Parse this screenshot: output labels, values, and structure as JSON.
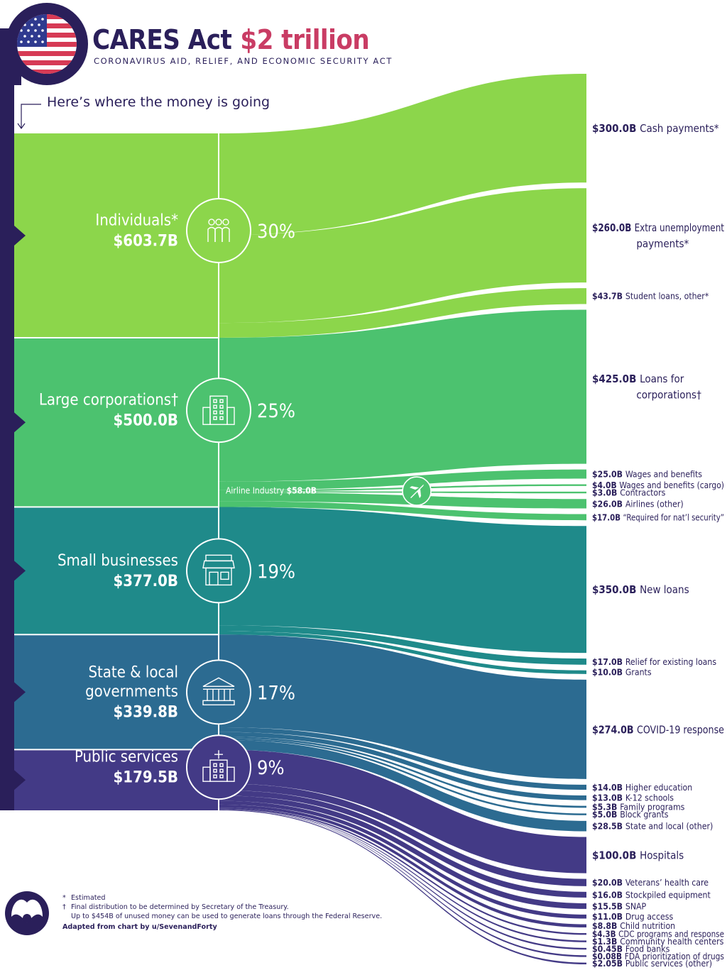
{
  "header": {
    "title": "CARES Act",
    "title_amount": "$2 trillion",
    "subtitle": "CORONAVIRUS AID, RELIEF, AND ECONOMIC SECURITY ACT",
    "tagline": "Here’s where the money is going"
  },
  "colors": {
    "navy": "#2a1f5a",
    "accent": "#c93c64",
    "individuals": "#8cd64b",
    "large_corporations": "#4cc26f",
    "small_businesses": "#1f8a8a",
    "state_local": "#2c6b91",
    "public_services": "#433a86"
  },
  "chart_data": {
    "type": "sankey",
    "title": "CARES Act $2 trillion",
    "units": "USD billions",
    "categories": [
      {
        "name": "Individuals*",
        "value_label": "$603.7B",
        "value": 603.7,
        "percent": "30%",
        "icon": "people-icon",
        "items": [
          {
            "value": 300.0,
            "value_label": "$300.0B",
            "label": "Cash payments*"
          },
          {
            "value": 260.0,
            "value_label": "$260.0B",
            "label": "Extra unemployment payments*",
            "lines": [
              "Extra unemployment",
              "payments*"
            ]
          },
          {
            "value": 43.7,
            "value_label": "$43.7B",
            "label": "Student loans, other*"
          }
        ]
      },
      {
        "name": "Large corporations†",
        "value_label": "$500.0B",
        "value": 500.0,
        "percent": "25%",
        "icon": "building-icon",
        "sub_group": {
          "label": "Airline Industry",
          "value_label": "$58.0B",
          "value": 58.0,
          "icon": "airplane-icon"
        },
        "items": [
          {
            "value": 425.0,
            "value_label": "$425.0B",
            "label": "Loans for corporations†",
            "lines": [
              "Loans for",
              "corporations†"
            ]
          },
          {
            "value": 25.0,
            "value_label": "$25.0B",
            "label": "Wages and benefits",
            "airline": true
          },
          {
            "value": 4.0,
            "value_label": "$4.0B",
            "label": "Wages and benefits (cargo)",
            "airline": true
          },
          {
            "value": 3.0,
            "value_label": "$3.0B",
            "label": "Contractors",
            "airline": true
          },
          {
            "value": 26.0,
            "value_label": "$26.0B",
            "label": "Airlines (other)",
            "airline": true
          },
          {
            "value": 17.0,
            "value_label": "$17.0B",
            "label": "“Required for nat’l security”"
          }
        ]
      },
      {
        "name": "Small businesses",
        "value_label": "$377.0B",
        "value": 377.0,
        "percent": "19%",
        "icon": "storefront-icon",
        "items": [
          {
            "value": 350.0,
            "value_label": "$350.0B",
            "label": "New loans"
          },
          {
            "value": 17.0,
            "value_label": "$17.0B",
            "label": "Relief for existing loans"
          },
          {
            "value": 10.0,
            "value_label": "$10.0B",
            "label": "Grants"
          }
        ]
      },
      {
        "name": "State & local governments",
        "name_lines": [
          "State & local",
          "governments"
        ],
        "value_label": "$339.8B",
        "value": 339.8,
        "percent": "17%",
        "icon": "government-building-icon",
        "items": [
          {
            "value": 274.0,
            "value_label": "$274.0B",
            "label": "COVID-19 response"
          },
          {
            "value": 14.0,
            "value_label": "$14.0B",
            "label": "Higher education"
          },
          {
            "value": 13.0,
            "value_label": "$13.0B",
            "label": "K-12 schools"
          },
          {
            "value": 5.3,
            "value_label": "$5.3B",
            "label": "Family programs"
          },
          {
            "value": 5.0,
            "value_label": "$5.0B",
            "label": "Block grants"
          },
          {
            "value": 28.5,
            "value_label": "$28.5B",
            "label": "State and local (other)"
          }
        ]
      },
      {
        "name": "Public services",
        "value_label": "$179.5B",
        "value": 179.5,
        "percent": "9%",
        "icon": "hospital-icon",
        "items": [
          {
            "value": 100.0,
            "value_label": "$100.0B",
            "label": "Hospitals"
          },
          {
            "value": 20.0,
            "value_label": "$20.0B",
            "label": "Veterans’ health care"
          },
          {
            "value": 16.0,
            "value_label": "$16.0B",
            "label": "Stockpiled equipment"
          },
          {
            "value": 15.5,
            "value_label": "$15.5B",
            "label": "SNAP"
          },
          {
            "value": 11.0,
            "value_label": "$11.0B",
            "label": "Drug access"
          },
          {
            "value": 8.8,
            "value_label": "$8.8B",
            "label": "Child nutrition"
          },
          {
            "value": 4.3,
            "value_label": "$4.3B",
            "label": "CDC programs and response"
          },
          {
            "value": 1.3,
            "value_label": "$1.3B",
            "label": "Community health centers"
          },
          {
            "value": 0.45,
            "value_label": "$0.45B",
            "label": "Food banks"
          },
          {
            "value": 0.08,
            "value_label": "$0.08B",
            "label": "FDA prioritization of drugs"
          },
          {
            "value": 2.05,
            "value_label": "$2.05B",
            "label": "Public services (other)"
          }
        ]
      }
    ]
  },
  "footnotes": {
    "estimated_symbol": "*",
    "estimated": "Estimated",
    "dagger_symbol": "†",
    "dagger_line1": "Final distribution to be determined by Secretary of the Treasury.",
    "dagger_line2": "Up to $454B of unused money can be used to generate loans through the Federal Reserve.",
    "credit": "Adapted from chart by u/SevenandForty"
  }
}
